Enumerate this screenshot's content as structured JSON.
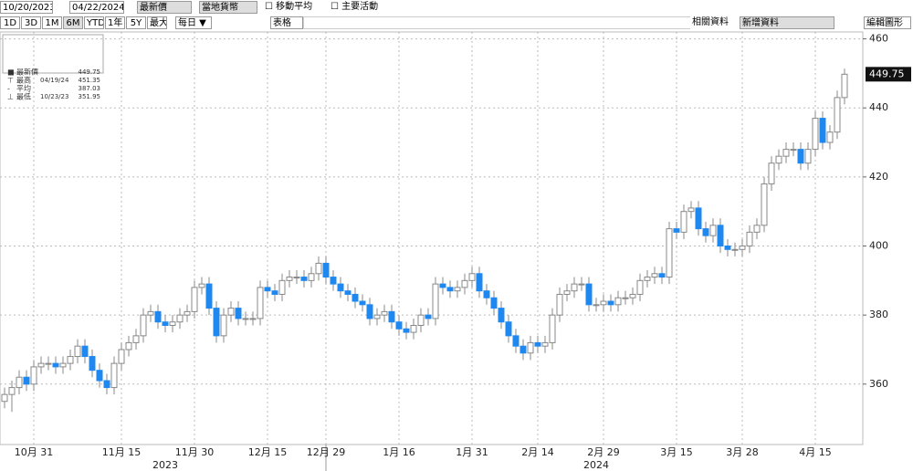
{
  "toolbar": {
    "start_date": "10/20/2023",
    "end_date": "04/22/2024",
    "field": "最新價",
    "currency": "當地貨幣",
    "moving_average": "移動平均",
    "key_events": "主要活動",
    "ranges": [
      "1D",
      "3D",
      "1M",
      "6M",
      "YTD",
      "1年",
      "5Y",
      "最大"
    ],
    "period": "每日 ▼",
    "table": "表格",
    "related": "相關資料",
    "add_data": "新增資料",
    "edit": "編輯圖形"
  },
  "chart_data": {
    "type": "candlestick",
    "legend": [
      {
        "name": "最新價",
        "value": 449.75
      },
      {
        "name": "最高",
        "date": "04/19/24",
        "value": 451.35
      },
      {
        "name": "平均",
        "value": 387.03
      },
      {
        "name": "最低",
        "date": "10/23/23",
        "value": 351.95
      }
    ],
    "open": [
      355,
      357,
      359,
      362,
      360,
      365,
      366,
      366,
      365,
      366,
      368,
      371,
      368,
      364,
      361,
      359,
      366,
      370,
      372,
      374,
      380,
      381,
      378,
      377,
      378,
      380,
      381,
      388,
      389,
      382,
      374,
      380,
      382,
      379,
      379,
      379,
      388,
      387,
      386,
      390,
      391,
      391,
      390,
      392,
      395,
      391,
      389,
      387,
      386,
      384,
      383,
      379,
      380,
      381,
      378,
      376,
      375,
      377,
      380,
      379,
      389,
      388,
      387,
      388,
      390,
      392,
      387,
      385,
      382,
      378,
      374,
      371,
      369,
      372,
      371,
      372,
      380,
      386,
      387,
      389,
      389,
      383,
      383,
      384,
      383,
      385,
      385,
      386,
      390,
      391,
      392,
      391,
      405,
      404,
      410,
      411,
      405,
      403,
      406,
      400,
      399,
      399,
      400,
      404,
      406,
      418,
      424,
      426,
      428,
      428,
      424,
      428,
      437,
      430,
      433,
      443
    ],
    "high": [
      359,
      361,
      364,
      364,
      367,
      368,
      368,
      368,
      368,
      370,
      373,
      373,
      370,
      366,
      363,
      368,
      372,
      374,
      376,
      382,
      383,
      383,
      380,
      380,
      382,
      383,
      390,
      391,
      391,
      384,
      382,
      384,
      384,
      381,
      381,
      390,
      390,
      389,
      392,
      393,
      393,
      393,
      394,
      397,
      397,
      393,
      391,
      389,
      388,
      386,
      385,
      382,
      383,
      383,
      380,
      378,
      379,
      382,
      382,
      391,
      391,
      390,
      390,
      392,
      394,
      394,
      389,
      387,
      384,
      380,
      376,
      373,
      374,
      374,
      374,
      382,
      388,
      389,
      391,
      391,
      391,
      385,
      386,
      386,
      387,
      387,
      388,
      392,
      393,
      394,
      394,
      407,
      407,
      412,
      413,
      413,
      407,
      408,
      408,
      402,
      401,
      402,
      406,
      408,
      420,
      426,
      428,
      430,
      430,
      430,
      430,
      439,
      439,
      435,
      445,
      451.35
    ],
    "low": [
      353,
      351.95,
      357,
      358,
      358,
      363,
      364,
      363,
      363,
      364,
      366,
      366,
      362,
      359,
      357,
      357,
      364,
      368,
      370,
      372,
      378,
      376,
      375,
      375,
      376,
      378,
      379,
      386,
      380,
      372,
      372,
      378,
      377,
      377,
      377,
      377,
      385,
      384,
      384,
      388,
      389,
      388,
      388,
      390,
      389,
      387,
      385,
      384,
      382,
      381,
      377,
      377,
      378,
      376,
      374,
      373,
      373,
      375,
      377,
      377,
      386,
      385,
      385,
      386,
      388,
      385,
      383,
      380,
      376,
      372,
      369,
      367,
      367,
      369,
      369,
      370,
      378,
      384,
      385,
      387,
      381,
      381,
      381,
      381,
      381,
      383,
      383,
      384,
      388,
      389,
      389,
      389,
      402,
      402,
      408,
      403,
      401,
      401,
      398,
      397,
      397,
      397,
      398,
      402,
      404,
      416,
      422,
      424,
      426,
      422,
      422,
      426,
      428,
      428,
      431,
      441
    ],
    "close": [
      357,
      359,
      362,
      360,
      365,
      366,
      366,
      365,
      366,
      368,
      371,
      368,
      364,
      361,
      359,
      366,
      370,
      372,
      374,
      380,
      381,
      378,
      377,
      378,
      380,
      381,
      388,
      389,
      382,
      374,
      380,
      382,
      379,
      379,
      379,
      388,
      387,
      386,
      390,
      391,
      391,
      390,
      392,
      395,
      391,
      389,
      387,
      386,
      384,
      383,
      379,
      380,
      381,
      378,
      376,
      375,
      377,
      380,
      379,
      389,
      388,
      387,
      388,
      390,
      392,
      387,
      385,
      382,
      378,
      374,
      371,
      369,
      372,
      371,
      372,
      380,
      386,
      387,
      389,
      389,
      383,
      383,
      384,
      383,
      385,
      385,
      386,
      390,
      391,
      392,
      391,
      405,
      404,
      410,
      411,
      405,
      403,
      406,
      400,
      399,
      399,
      400,
      404,
      406,
      418,
      424,
      426,
      428,
      428,
      424,
      428,
      437,
      430,
      433,
      443,
      449.75
    ],
    "up_color": "#ffffff",
    "down_color": "#1e88f0",
    "xlim": [
      -0.625,
      117.5
    ],
    "xticks": [
      {
        "value": 4,
        "label": "10月 31"
      },
      {
        "value": 16,
        "label": "11月 15"
      },
      {
        "value": 26,
        "label": "11月 30"
      },
      {
        "value": 36,
        "label": "12月 15"
      },
      {
        "value": 44,
        "label": "12月 29"
      },
      {
        "value": 54,
        "label": "1月 16"
      },
      {
        "value": 64,
        "label": "1月 31"
      },
      {
        "value": 73,
        "label": "2月 14"
      },
      {
        "value": 82,
        "label": "2月 29"
      },
      {
        "value": 92,
        "label": "3月 15"
      },
      {
        "value": 101,
        "label": "3月 28"
      },
      {
        "value": 111,
        "label": "4月 15"
      }
    ],
    "years": [
      {
        "value": 22,
        "label": "2023"
      },
      {
        "value": 81,
        "label": "2024"
      }
    ],
    "ylim": [
      342.5,
      462
    ],
    "yticks": [
      360,
      380,
      400,
      420,
      440,
      460
    ],
    "grid": true
  }
}
